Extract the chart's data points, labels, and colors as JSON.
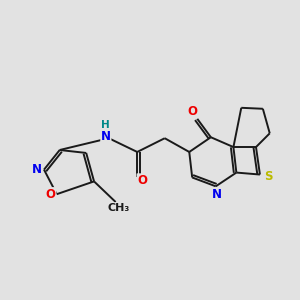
{
  "bg_color": "#e2e2e2",
  "bond_color": "#1a1a1a",
  "atom_colors": {
    "N": "#0000ee",
    "O": "#ee0000",
    "S": "#bbbb00",
    "H": "#008888",
    "C": "#1a1a1a"
  },
  "font_size": 8.5,
  "lw": 1.4,
  "figsize": [
    3.0,
    3.0
  ],
  "dpi": 100
}
